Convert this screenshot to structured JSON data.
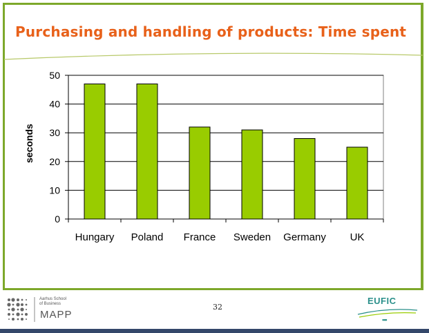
{
  "title": "Purchasing and handling of products: Time spent",
  "page_number": "32",
  "footer": {
    "school_line1": "Aarhus School",
    "school_line2": "of Business",
    "mapp": "MAPP",
    "eufic": "EUFIC",
    "eufic_dots": "▪▪▪"
  },
  "colors": {
    "accent": "#e8611a",
    "frame": "#7da82a",
    "bar": "#99cc00",
    "eufic": "#2a8f8a"
  },
  "chart_data": {
    "type": "bar",
    "categories": [
      "Hungary",
      "Poland",
      "France",
      "Sweden",
      "Germany",
      "UK"
    ],
    "values": [
      47,
      47,
      32,
      31,
      28,
      25
    ],
    "title": "",
    "xlabel": "",
    "ylabel": "seconds",
    "ylim": [
      0,
      50
    ],
    "yticks": [
      0,
      10,
      20,
      30,
      40,
      50
    ],
    "grid": true,
    "legend": "none"
  }
}
